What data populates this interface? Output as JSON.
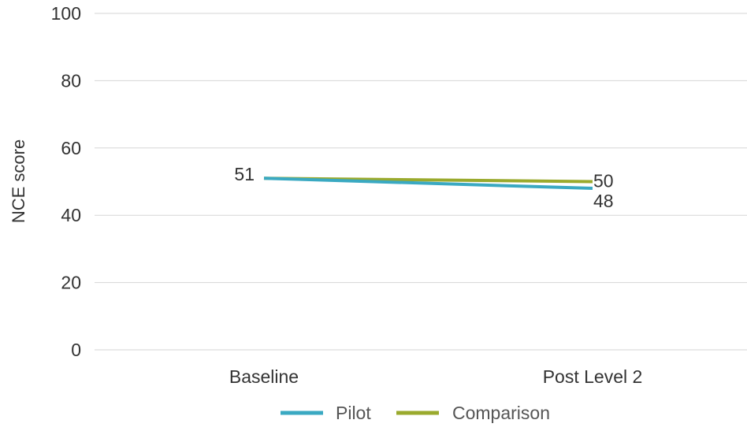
{
  "chart_data": {
    "type": "line",
    "categories": [
      "Baseline",
      "Post Level 2"
    ],
    "series": [
      {
        "name": "Pilot",
        "values": [
          51,
          48
        ],
        "color": "#3aa9c2"
      },
      {
        "name": "Comparison",
        "values": [
          51,
          50
        ],
        "color": "#9aaa2d"
      }
    ],
    "yticks": [
      0,
      20,
      40,
      60,
      80,
      100
    ],
    "ylim": [
      0,
      100
    ],
    "ylabel": "NCE score",
    "xlabel": "",
    "title": "",
    "data_labels": [
      {
        "series": "Comparison",
        "category": "Baseline",
        "text": "51"
      },
      {
        "series": "Comparison",
        "category": "Post Level 2",
        "text": "50"
      },
      {
        "series": "Pilot",
        "category": "Post Level 2",
        "text": "48"
      }
    ],
    "grid": true,
    "legend": "bottom-center"
  }
}
